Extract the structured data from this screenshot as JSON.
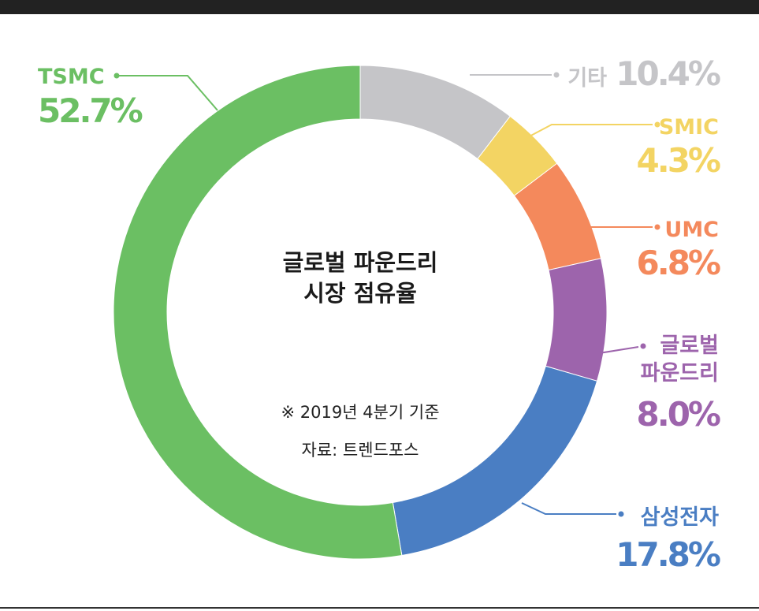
{
  "chart_data": {
    "type": "pie",
    "title_lines": [
      "글로벌 파운드리",
      "시장 점유율"
    ],
    "notes": [
      "※ 2019년 4분기 기준",
      "자료: 트렌드포스"
    ],
    "slices": [
      {
        "label": "기타",
        "value": 10.4,
        "value_label": "10.4%",
        "color": "#c5c5c8"
      },
      {
        "label": "SMIC",
        "value": 4.3,
        "value_label": "4.3%",
        "color": "#f3d463"
      },
      {
        "label": "UMC",
        "value": 6.8,
        "value_label": "6.8%",
        "color": "#f4895c"
      },
      {
        "label_lines": [
          "글로벌",
          "파운드리"
        ],
        "value": 8.0,
        "value_label": "8.0%",
        "color": "#9d64ac"
      },
      {
        "label": "삼성전자",
        "value": 17.8,
        "value_label": "17.8%",
        "color": "#4a7ec3"
      },
      {
        "label": "TSMC",
        "value": 52.7,
        "value_label": "52.7%",
        "color": "#6bbf63"
      }
    ]
  }
}
